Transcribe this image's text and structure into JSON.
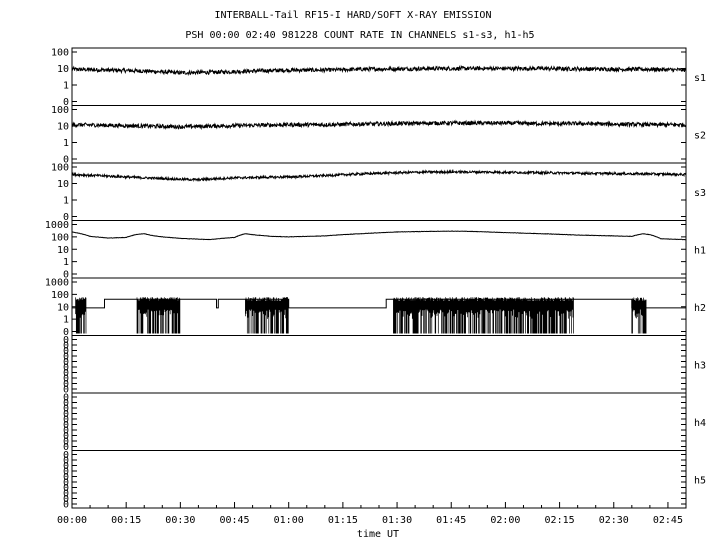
{
  "chart_data": {
    "type": "line",
    "title": "INTERBALL-Tail RF15-I HARD/SOFT X-RAY EMISSION",
    "subtitle": "PSH 00:00 02:40 981228  COUNT RATE IN CHANNELS s1-s3, h1-h5",
    "xlabel": "time UT",
    "x_ticks": [
      "00:00",
      "00:15",
      "00:30",
      "00:45",
      "01:00",
      "01:15",
      "01:30",
      "01:45",
      "02:00",
      "02:15",
      "02:30",
      "02:45"
    ],
    "x_range_minutes": [
      0,
      170
    ],
    "grid": false,
    "panels": [
      {
        "name": "s1",
        "y_scale": "log",
        "y_ticks": [
          "100",
          "10",
          "1",
          "0"
        ],
        "baseline_points": [
          [
            0,
            9
          ],
          [
            10,
            8
          ],
          [
            20,
            7
          ],
          [
            30,
            5.5
          ],
          [
            40,
            6
          ],
          [
            50,
            7
          ],
          [
            60,
            8
          ],
          [
            70,
            8
          ],
          [
            80,
            9
          ],
          [
            90,
            9.5
          ],
          [
            100,
            10
          ],
          [
            110,
            10
          ],
          [
            120,
            10
          ],
          [
            130,
            10
          ],
          [
            140,
            9.5
          ],
          [
            150,
            9
          ],
          [
            160,
            9
          ],
          [
            170,
            8
          ]
        ],
        "noise_decades": 0.12
      },
      {
        "name": "s2",
        "y_scale": "log",
        "y_ticks": [
          "100",
          "10",
          "1",
          "0"
        ],
        "baseline_points": [
          [
            0,
            12
          ],
          [
            10,
            11
          ],
          [
            20,
            10
          ],
          [
            30,
            9
          ],
          [
            40,
            10
          ],
          [
            50,
            11
          ],
          [
            60,
            12
          ],
          [
            70,
            12
          ],
          [
            80,
            13
          ],
          [
            90,
            14
          ],
          [
            100,
            15
          ],
          [
            110,
            15
          ],
          [
            120,
            15
          ],
          [
            130,
            14
          ],
          [
            140,
            14
          ],
          [
            150,
            13
          ],
          [
            160,
            12
          ],
          [
            170,
            12
          ]
        ],
        "noise_decades": 0.12
      },
      {
        "name": "s3",
        "y_scale": "log",
        "y_ticks": [
          "100",
          "10",
          "1",
          "0"
        ],
        "baseline_points": [
          [
            0,
            35
          ],
          [
            10,
            28
          ],
          [
            20,
            22
          ],
          [
            30,
            18
          ],
          [
            35,
            17
          ],
          [
            45,
            22
          ],
          [
            60,
            25
          ],
          [
            70,
            30
          ],
          [
            80,
            38
          ],
          [
            90,
            45
          ],
          [
            100,
            50
          ],
          [
            110,
            50
          ],
          [
            120,
            48
          ],
          [
            130,
            45
          ],
          [
            140,
            42
          ],
          [
            150,
            40
          ],
          [
            160,
            38
          ],
          [
            170,
            35
          ]
        ],
        "noise_decades": 0.07
      },
      {
        "name": "h1",
        "y_scale": "log",
        "y_ticks": [
          "1000",
          "100",
          "10",
          "1",
          "0"
        ],
        "baseline_points": [
          [
            0,
            250
          ],
          [
            5,
            110
          ],
          [
            10,
            80
          ],
          [
            15,
            90
          ],
          [
            18,
            160
          ],
          [
            20,
            180
          ],
          [
            22,
            130
          ],
          [
            25,
            100
          ],
          [
            30,
            75
          ],
          [
            38,
            60
          ],
          [
            45,
            90
          ],
          [
            48,
            180
          ],
          [
            50,
            150
          ],
          [
            55,
            110
          ],
          [
            60,
            100
          ],
          [
            70,
            120
          ],
          [
            80,
            180
          ],
          [
            90,
            250
          ],
          [
            100,
            280
          ],
          [
            105,
            290
          ],
          [
            110,
            280
          ],
          [
            120,
            220
          ],
          [
            130,
            180
          ],
          [
            140,
            140
          ],
          [
            150,
            120
          ],
          [
            155,
            110
          ],
          [
            158,
            180
          ],
          [
            160,
            150
          ],
          [
            163,
            70
          ],
          [
            170,
            60
          ]
        ],
        "noise_decades": 0.015
      },
      {
        "name": "h2",
        "y_scale": "log",
        "y_ticks": [
          "1000",
          "100",
          "10",
          "1",
          "0"
        ],
        "step_points": [
          [
            0,
            8
          ],
          [
            9,
            40
          ],
          [
            40,
            8
          ],
          [
            40.5,
            40
          ],
          [
            60,
            8
          ],
          [
            87,
            40
          ],
          [
            155,
            8
          ],
          [
            160,
            8
          ],
          [
            170,
            8
          ]
        ],
        "burst_intervals": [
          [
            1,
            4
          ],
          [
            18,
            30
          ],
          [
            48,
            60
          ],
          [
            89,
            139
          ],
          [
            155,
            159
          ]
        ]
      },
      {
        "name": "h3",
        "y_scale": "log",
        "y_ticks": [
          "0",
          "0",
          "0",
          "0",
          "0",
          "0",
          "0",
          "0",
          "0",
          "0"
        ]
      },
      {
        "name": "h4",
        "y_scale": "log",
        "y_ticks": [
          "0",
          "0",
          "0",
          "0",
          "0",
          "0",
          "0",
          "0",
          "0",
          "0"
        ]
      },
      {
        "name": "h5",
        "y_scale": "log",
        "y_ticks": [
          "0",
          "0",
          "0",
          "0",
          "0",
          "0",
          "0",
          "0",
          "0",
          "0"
        ]
      }
    ]
  }
}
